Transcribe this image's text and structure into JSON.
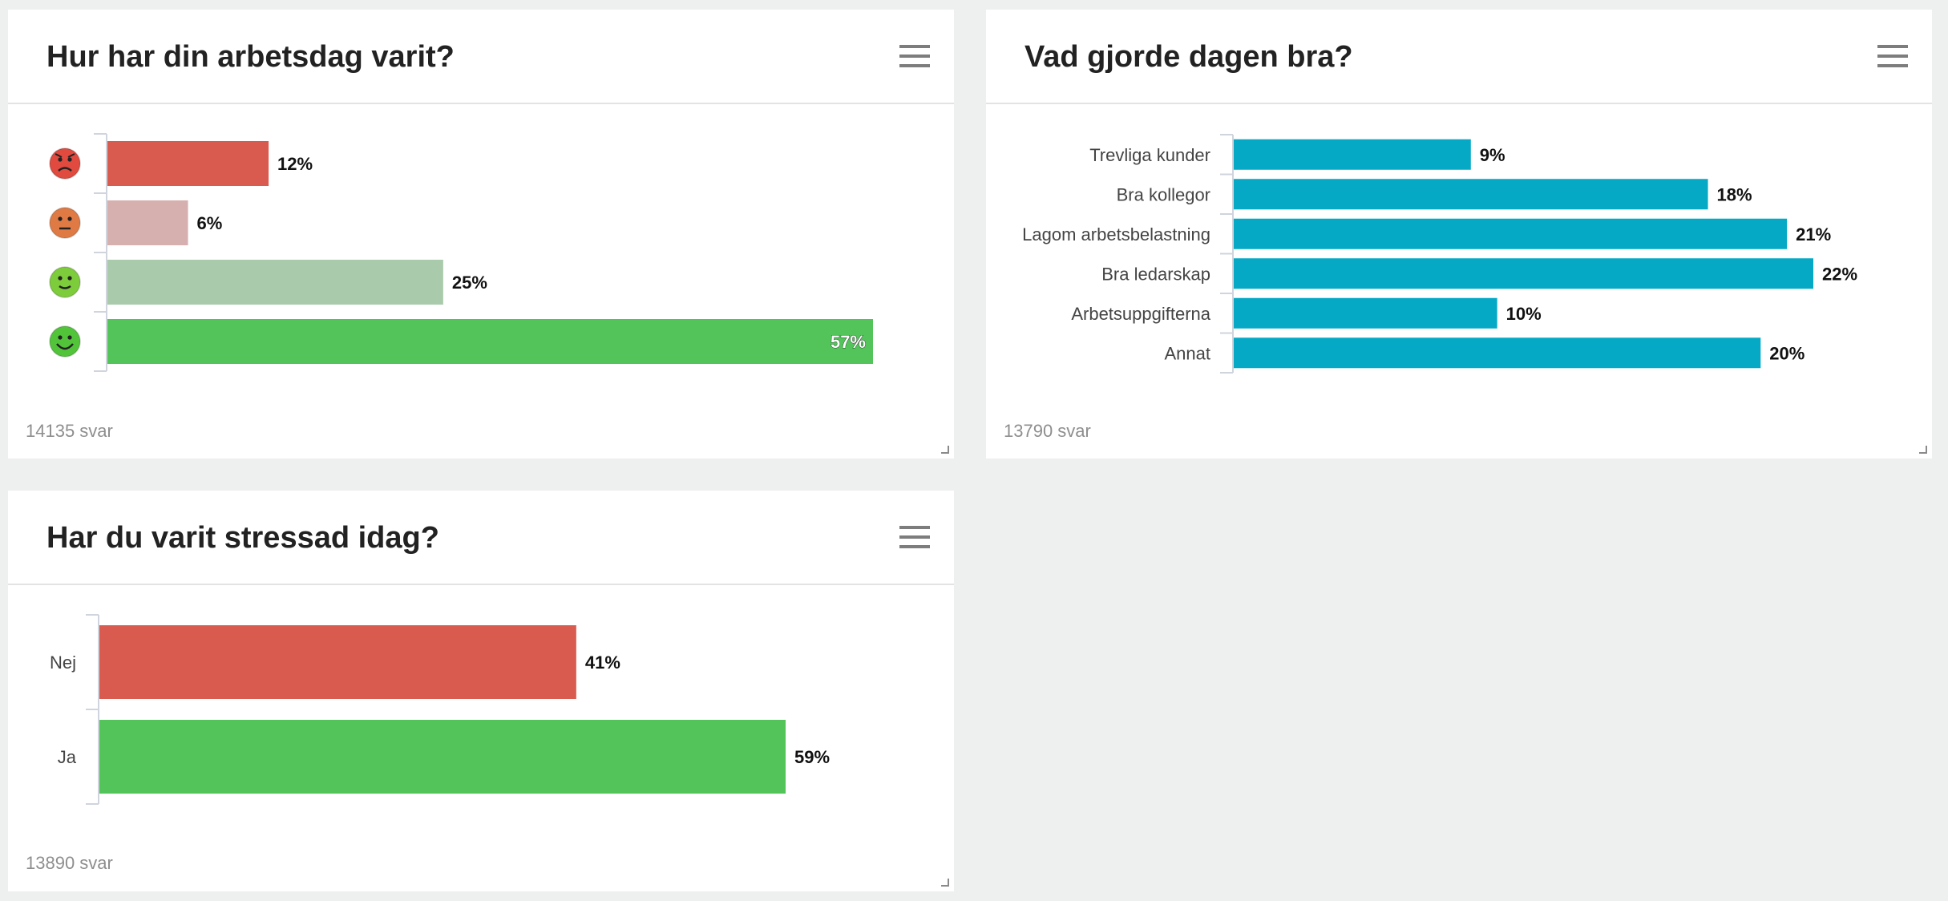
{
  "panels": [
    {
      "title": "Hur har din arbetsdag varit?",
      "footer": "14135 svar",
      "chart_data": {
        "type": "bar",
        "orientation": "horizontal",
        "title": "Hur har din arbetsdag varit?",
        "categories": [
          "angry-face-icon",
          "neutral-face-icon",
          "slight-smile-face-icon",
          "big-smile-face-icon"
        ],
        "values": [
          12,
          6,
          25,
          57
        ],
        "labels": [
          "12%",
          "6%",
          "25%",
          "57%"
        ],
        "colors": [
          "#d95b4f",
          "#d6b0ae",
          "#a9cbab",
          "#52c45a"
        ],
        "icon_colors": [
          "#e04a3f",
          "#e07a45",
          "#7dcc3b",
          "#52c43a"
        ],
        "xlim": [
          0,
          57
        ],
        "label_inside_last": true
      }
    },
    {
      "title": "Vad gjorde dagen bra?",
      "footer": "13790 svar",
      "chart_data": {
        "type": "bar",
        "orientation": "horizontal",
        "title": "Vad gjorde dagen bra?",
        "categories": [
          "Trevliga kunder",
          "Bra kollegor",
          "Lagom arbetsbelastning",
          "Bra ledarskap",
          "Arbetsuppgifterna",
          "Annat"
        ],
        "values": [
          9,
          18,
          21,
          22,
          10,
          20
        ],
        "labels": [
          "9%",
          "18%",
          "21%",
          "22%",
          "10%",
          "20%"
        ],
        "colors": [
          "#05a9c6",
          "#05a9c6",
          "#05a9c6",
          "#05a9c6",
          "#05a9c6",
          "#05a9c6"
        ],
        "xlim": [
          0,
          22
        ]
      }
    },
    {
      "title": "Har du varit stressad idag?",
      "footer": "13890 svar",
      "chart_data": {
        "type": "bar",
        "orientation": "horizontal",
        "title": "Har du varit stressad idag?",
        "categories": [
          "Nej",
          "Ja"
        ],
        "values": [
          41,
          59
        ],
        "labels": [
          "41%",
          "59%"
        ],
        "colors": [
          "#d95b4f",
          "#52c45a"
        ],
        "xlim": [
          0,
          59
        ]
      }
    }
  ]
}
